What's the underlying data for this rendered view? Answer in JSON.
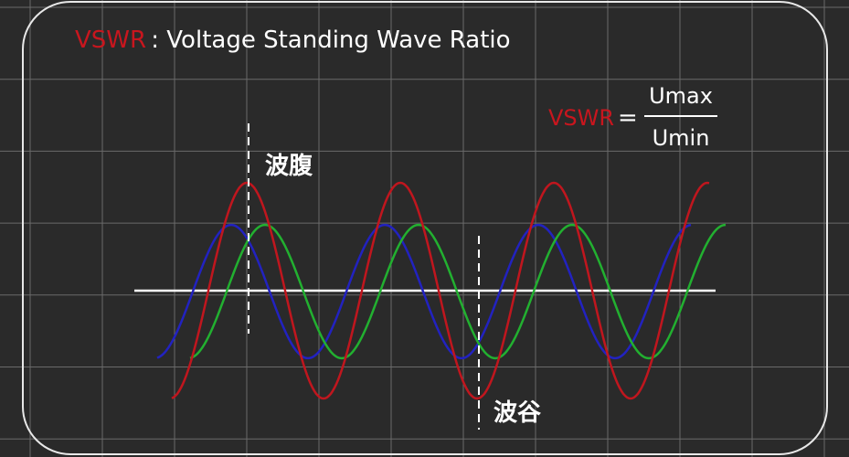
{
  "header": {
    "acronym": "VSWR",
    "title": ": Voltage Standing Wave Ratio"
  },
  "formula": {
    "lhs": "VSWR",
    "equals": "=",
    "numerator": "Umax",
    "denominator": "Umin"
  },
  "labels": {
    "antinode": "波腹",
    "node": "波谷"
  }
}
